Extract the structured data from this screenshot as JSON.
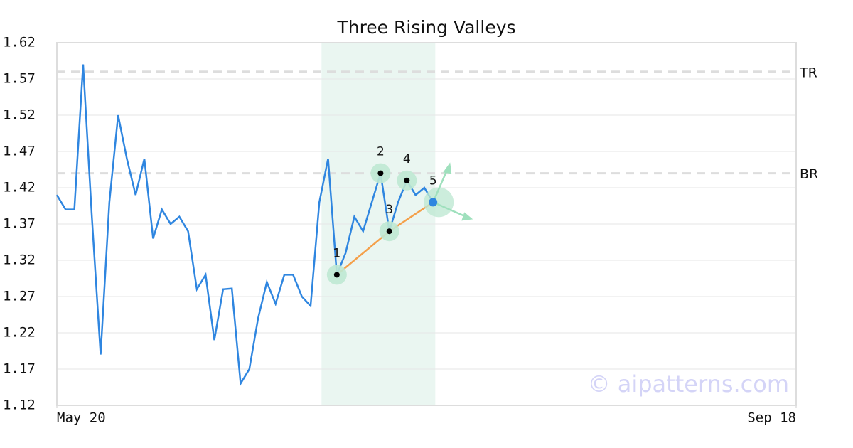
{
  "chart_data": {
    "type": "line",
    "title": "Three Rising Valleys",
    "x": [
      0,
      1,
      2,
      3,
      4,
      5,
      6,
      7,
      8,
      9,
      10,
      11,
      12,
      13,
      14,
      15,
      16,
      17,
      18,
      19,
      20,
      21,
      22,
      23,
      24,
      25,
      26,
      27,
      28,
      29,
      30,
      31,
      32,
      33,
      34,
      35,
      36,
      37,
      38,
      39,
      40,
      41,
      42,
      43
    ],
    "series": [
      {
        "color": "#2f86e0",
        "values": [
          1.41,
          1.39,
          1.39,
          1.59,
          1.38,
          1.19,
          1.4,
          1.52,
          1.46,
          1.41,
          1.46,
          1.35,
          1.39,
          1.37,
          1.38,
          1.36,
          1.28,
          1.3,
          1.21,
          1.28,
          1.281,
          1.15,
          1.17,
          1.24,
          1.29,
          1.26,
          1.3,
          1.3,
          1.27,
          1.257,
          1.4,
          1.46,
          1.3,
          1.33,
          1.38,
          1.36,
          1.4,
          1.44,
          1.36,
          1.4,
          1.43,
          1.41,
          1.42,
          1.4
        ]
      }
    ],
    "xlim": [
      0,
      84.5
    ],
    "xticks": [
      {
        "value": 0,
        "label": "May 20"
      },
      {
        "value": 84.5,
        "label": "Sep 18"
      }
    ],
    "ylim": [
      1.12,
      1.62
    ],
    "yticks": [
      1.12,
      1.17,
      1.22,
      1.27,
      1.32,
      1.37,
      1.42,
      1.47,
      1.52,
      1.57,
      1.62
    ],
    "grid": true,
    "highlight": {
      "x": [
        30.25,
        43.25
      ],
      "color": "#eaf6f1"
    },
    "levels": [
      {
        "label": "TR",
        "value": 1.58
      },
      {
        "label": "BR",
        "value": 1.44
      }
    ],
    "pivots": [
      {
        "label": "1",
        "x": 32,
        "y": 1.3
      },
      {
        "label": "2",
        "x": 37,
        "y": 1.44
      },
      {
        "label": "3",
        "x": 38,
        "y": 1.36
      },
      {
        "label": "4",
        "x": 40,
        "y": 1.43
      },
      {
        "label": "5",
        "x": 43,
        "y": 1.4
      }
    ],
    "trendline": {
      "color": "#f4a04a",
      "x": [
        32,
        38,
        43
      ],
      "y": [
        1.3,
        1.36,
        1.4
      ]
    },
    "watermark": "© aipatterns.com"
  }
}
